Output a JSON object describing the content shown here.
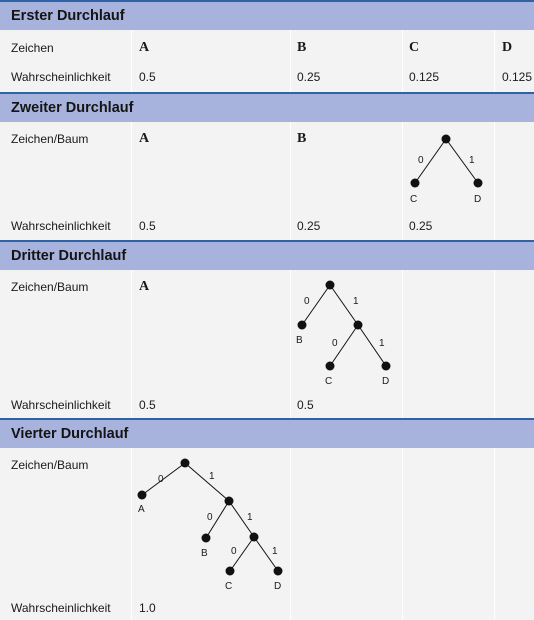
{
  "labels": {
    "zeichen": "Zeichen",
    "zeichen_baum": "Zeichen/Baum",
    "wahrscheinlichkeit": "Wahrscheinlichkeit"
  },
  "passes": [
    {
      "title": "Erster Durchlauf",
      "symbols": [
        "A",
        "B",
        "C",
        "D"
      ],
      "probabilities": [
        "0.5",
        "0.25",
        "0.125",
        "0.125"
      ]
    },
    {
      "title": "Zweiter Durchlauf",
      "symbols": [
        "A",
        "B"
      ],
      "tree": {
        "edge_left": "0",
        "edge_right": "1",
        "leaf_left": "C",
        "leaf_right": "D"
      },
      "probabilities": [
        "0.5",
        "0.25",
        "0.25"
      ]
    },
    {
      "title": "Dritter Durchlauf",
      "symbols": [
        "A"
      ],
      "tree": {
        "edge_0": "0",
        "edge_1": "1",
        "leaf_b": "B",
        "edge_2": "0",
        "edge_3": "1",
        "leaf_c": "C",
        "leaf_d": "D"
      },
      "probabilities": [
        "0.5",
        "0.5"
      ]
    },
    {
      "title": "Vierter Durchlauf",
      "tree": {
        "edge_0": "0",
        "edge_1": "1",
        "leaf_a": "A",
        "edge_2": "0",
        "edge_3": "1",
        "leaf_b": "B",
        "edge_4": "0",
        "edge_5": "1",
        "leaf_c": "C",
        "leaf_d": "D"
      },
      "probabilities": [
        "1.0"
      ]
    }
  ]
}
